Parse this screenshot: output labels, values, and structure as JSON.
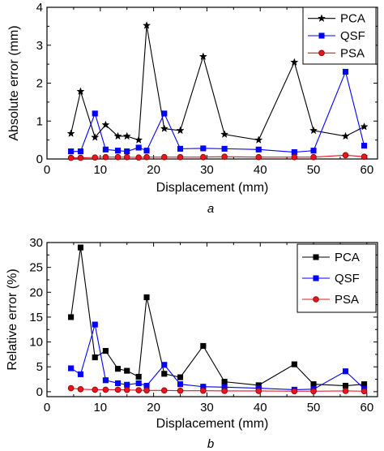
{
  "chart_data": [
    {
      "type": "line",
      "panel_label": "a",
      "xlabel": "Displacement (mm)",
      "ylabel": "Absolute error (mm)",
      "xlim": [
        0,
        62
      ],
      "ylim": [
        0,
        4
      ],
      "xticks": [
        0,
        10,
        20,
        30,
        40,
        50,
        60
      ],
      "yticks": [
        0,
        1,
        2,
        3,
        4
      ],
      "grid": false,
      "legend_position": "top-right",
      "series": [
        {
          "name": "PCA",
          "color": "#000000",
          "marker": "star",
          "x": [
            4.5,
            6.3,
            9.0,
            11.0,
            13.3,
            15.0,
            17.2,
            18.7,
            22.0,
            25.0,
            29.3,
            33.3,
            39.7,
            46.4,
            50.0,
            56.0,
            59.5
          ],
          "y": [
            0.67,
            1.78,
            0.57,
            0.9,
            0.6,
            0.6,
            0.5,
            3.52,
            0.8,
            0.75,
            2.7,
            0.65,
            0.5,
            2.55,
            0.75,
            0.6,
            0.85
          ]
        },
        {
          "name": "QSF",
          "color": "#0000ff",
          "marker": "square",
          "x": [
            4.5,
            6.3,
            9.0,
            11.0,
            13.3,
            15.0,
            17.2,
            18.7,
            22.0,
            25.0,
            29.3,
            33.3,
            39.7,
            46.4,
            50.0,
            56.0,
            59.5
          ],
          "y": [
            0.2,
            0.2,
            1.2,
            0.25,
            0.22,
            0.2,
            0.3,
            0.22,
            1.2,
            0.27,
            0.28,
            0.27,
            0.25,
            0.18,
            0.22,
            2.3,
            0.35
          ]
        },
        {
          "name": "PSA",
          "color": "#e8141e",
          "marker": "circle",
          "x": [
            4.5,
            6.3,
            9.0,
            11.0,
            13.3,
            15.0,
            17.2,
            18.7,
            22.0,
            25.0,
            29.3,
            33.3,
            39.7,
            46.4,
            50.0,
            56.0,
            59.5
          ],
          "y": [
            0.03,
            0.03,
            0.04,
            0.05,
            0.05,
            0.05,
            0.04,
            0.05,
            0.05,
            0.05,
            0.05,
            0.06,
            0.05,
            0.05,
            0.05,
            0.1,
            0.06
          ]
        }
      ]
    },
    {
      "type": "line",
      "panel_label": "b",
      "xlabel": "Displacement (mm)",
      "ylabel": "Relative error (%)",
      "xlim": [
        0,
        62
      ],
      "ylim": [
        -1,
        30
      ],
      "xticks": [
        0,
        10,
        20,
        30,
        40,
        50,
        60
      ],
      "yticks": [
        0,
        5,
        10,
        15,
        20,
        25,
        30
      ],
      "grid": false,
      "legend_position": "top-right",
      "series": [
        {
          "name": "PCA",
          "color": "#000000",
          "marker": "square",
          "x": [
            4.5,
            6.3,
            9.0,
            11.0,
            13.3,
            15.0,
            17.2,
            18.7,
            22.0,
            25.0,
            29.3,
            33.3,
            39.7,
            46.4,
            50.0,
            56.0,
            59.5
          ],
          "y": [
            15.0,
            29.0,
            6.9,
            8.2,
            4.6,
            4.2,
            3.0,
            19.0,
            3.6,
            2.9,
            9.2,
            2.0,
            1.3,
            5.5,
            1.5,
            1.2,
            1.5
          ]
        },
        {
          "name": "QSF",
          "color": "#0000ff",
          "marker": "square",
          "x": [
            4.5,
            6.3,
            9.0,
            11.0,
            13.3,
            15.0,
            17.2,
            18.7,
            22.0,
            25.0,
            29.3,
            33.3,
            39.7,
            46.4,
            50.0,
            56.0,
            59.5
          ],
          "y": [
            4.7,
            3.5,
            13.5,
            2.3,
            1.7,
            1.4,
            1.7,
            1.2,
            5.4,
            1.5,
            1.0,
            0.9,
            0.7,
            0.4,
            0.5,
            4.1,
            0.6
          ]
        },
        {
          "name": "PSA",
          "color": "#e8141e",
          "marker": "circle",
          "x": [
            4.5,
            6.3,
            9.0,
            11.0,
            13.3,
            15.0,
            17.2,
            18.7,
            22.0,
            25.0,
            29.3,
            33.3,
            39.7,
            46.4,
            50.0,
            56.0,
            59.5
          ],
          "y": [
            0.7,
            0.5,
            0.4,
            0.4,
            0.4,
            0.35,
            0.3,
            0.25,
            0.25,
            0.2,
            0.2,
            0.15,
            0.15,
            0.1,
            0.1,
            0.15,
            0.1
          ]
        }
      ]
    }
  ]
}
